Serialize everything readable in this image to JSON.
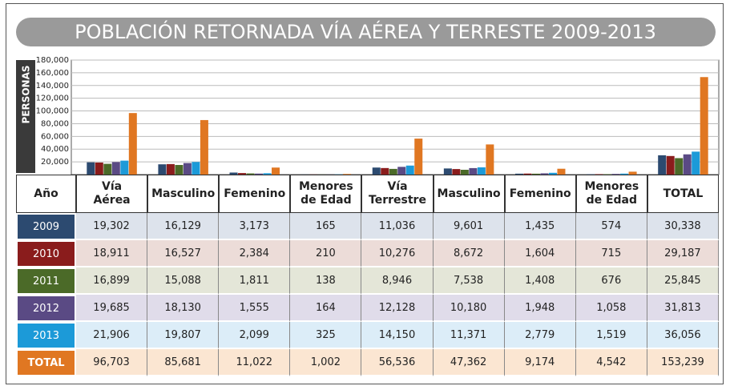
{
  "chart_data": {
    "type": "bar",
    "title": "POBLACIÓN RETORNADA VÍA AÉREA Y TERRESTE 2009-2013",
    "y_label": "PERSONAS",
    "table_header": "Año",
    "categories": [
      "Vía Aérea",
      "Masculino",
      "Femenino",
      "Menores de Edad",
      "Vía Terrestre",
      "Masculino",
      "Femenino",
      "Menores de Edad",
      "TOTAL"
    ],
    "ylim": [
      0,
      180000
    ],
    "yticks": [
      {
        "value": 20000,
        "label": "20,000"
      },
      {
        "value": 40000,
        "label": "40,000"
      },
      {
        "value": 60000,
        "label": "60,000"
      },
      {
        "value": 80000,
        "label": "80,000"
      },
      {
        "value": 100000,
        "label": "100,000"
      },
      {
        "value": 120000,
        "label": "120,000"
      },
      {
        "value": 140000,
        "label": "140,000"
      },
      {
        "value": 160000,
        "label": "160,000"
      },
      {
        "value": 180000,
        "label": "180,000"
      }
    ],
    "grid": true,
    "series": [
      {
        "name": "2009",
        "color": "#2c4a70",
        "row_fill": "#dde3ec",
        "values": [
          19302,
          16129,
          3173,
          165,
          11036,
          9601,
          1435,
          574,
          30338
        ],
        "value_labels": [
          "19,302",
          "16,129",
          "3,173",
          "165",
          "11,036",
          "9,601",
          "1,435",
          "574",
          "30,338"
        ]
      },
      {
        "name": "2010",
        "color": "#8a1c1c",
        "row_fill": "#ecdcd8",
        "values": [
          18911,
          16527,
          2384,
          210,
          10276,
          8672,
          1604,
          715,
          29187
        ],
        "value_labels": [
          "18,911",
          "16,527",
          "2,384",
          "210",
          "10,276",
          "8,672",
          "1,604",
          "715",
          "29,187"
        ]
      },
      {
        "name": "2011",
        "color": "#4b6a28",
        "row_fill": "#e4e6d8",
        "values": [
          16899,
          15088,
          1811,
          138,
          8946,
          7538,
          1408,
          676,
          25845
        ],
        "value_labels": [
          "16,899",
          "15,088",
          "1,811",
          "138",
          "8,946",
          "7,538",
          "1,408",
          "676",
          "25,845"
        ]
      },
      {
        "name": "2012",
        "color": "#5a4a84",
        "row_fill": "#e0dcea",
        "values": [
          19685,
          18130,
          1555,
          164,
          12128,
          10180,
          1948,
          1058,
          31813
        ],
        "value_labels": [
          "19,685",
          "18,130",
          "1,555",
          "164",
          "12,128",
          "10,180",
          "1,948",
          "1,058",
          "31,813"
        ]
      },
      {
        "name": "2013",
        "color": "#1c9ad8",
        "row_fill": "#dcedf8",
        "values": [
          21906,
          19807,
          2099,
          325,
          14150,
          11371,
          2779,
          1519,
          36056
        ],
        "value_labels": [
          "21,906",
          "19,807",
          "2,099",
          "325",
          "14,150",
          "11,371",
          "2,779",
          "1,519",
          "36,056"
        ]
      },
      {
        "name": "TOTAL",
        "color": "#e07722",
        "row_fill": "#fbe6d2",
        "values": [
          96703,
          85681,
          11022,
          1002,
          56536,
          47362,
          9174,
          4542,
          153239
        ],
        "value_labels": [
          "96,703",
          "85,681",
          "11,022",
          "1,002",
          "56,536",
          "47,362",
          "9,174",
          "4,542",
          "153,239"
        ]
      }
    ]
  }
}
